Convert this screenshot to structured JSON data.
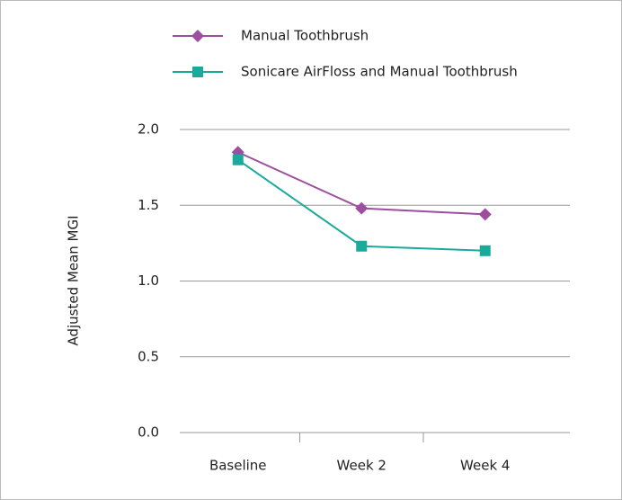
{
  "chart_data": {
    "type": "line",
    "y_label": "Adjusted Mean MGI",
    "categories": [
      "Baseline",
      "Week 2",
      "Week 4"
    ],
    "series": [
      {
        "name": "Manual Toothbrush",
        "color": "#9b4f9e",
        "marker": "diamond",
        "values": [
          1.85,
          1.48,
          1.44
        ]
      },
      {
        "name": "Sonicare AirFloss and Manual Toothbrush",
        "color": "#1aa99a",
        "marker": "square",
        "values": [
          1.8,
          1.23,
          1.2
        ]
      }
    ],
    "ylim": [
      0,
      2
    ],
    "yticks": [
      {
        "value": 0,
        "label": "0.0"
      },
      {
        "value": 0.5,
        "label": "0.5"
      },
      {
        "value": 1,
        "label": "1.0"
      },
      {
        "value": 1.5,
        "label": "1.5"
      },
      {
        "value": 2,
        "label": "2.0"
      }
    ],
    "grid": true,
    "legend": "top"
  }
}
